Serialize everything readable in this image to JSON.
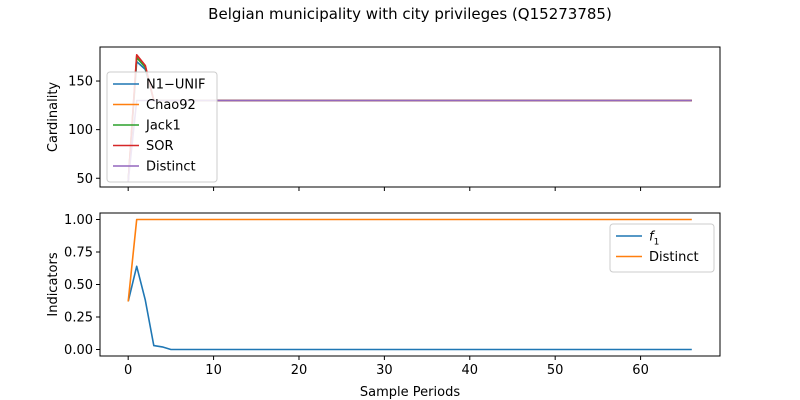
{
  "chart_data": {
    "type": "line",
    "suptitle": "Belgian municipality with city privileges (Q15273785)",
    "xlabel": "Sample Periods",
    "xlim": [
      -3.3,
      69.3
    ],
    "xticks": [
      0,
      10,
      20,
      30,
      40,
      50,
      60
    ],
    "xtick_labels": [
      "0",
      "10",
      "20",
      "30",
      "40",
      "50",
      "60"
    ],
    "panels": [
      {
        "ylabel": "Cardinality",
        "ylim": [
          41,
          185
        ],
        "yticks": [
          50,
          100,
          150
        ],
        "ytick_labels": [
          "50",
          "100",
          "150"
        ],
        "legend_loc": "upper-left",
        "series": [
          {
            "name": "N1−UNIF",
            "color": "#1f77b4",
            "x": [
              0,
              1,
              2,
              3,
              66
            ],
            "y": [
              47,
              170,
              162,
              130,
              130
            ]
          },
          {
            "name": "Chao92",
            "color": "#ff7f0e",
            "x": [
              0,
              1,
              2,
              3,
              66
            ],
            "y": [
              47,
              176,
              165,
              130,
              130
            ]
          },
          {
            "name": "Jack1",
            "color": "#2ca02c",
            "x": [
              0,
              1,
              2,
              3,
              66
            ],
            "y": [
              47,
              174,
              164,
              130,
              130
            ]
          },
          {
            "name": "SOR",
            "color": "#d62728",
            "x": [
              0,
              1,
              2,
              3,
              66
            ],
            "y": [
              47,
              177,
              166,
              130,
              130
            ]
          },
          {
            "name": "Distinct",
            "color": "#9467bd",
            "x": [
              0,
              1,
              2,
              3,
              66
            ],
            "y": [
              47,
              130,
              130,
              130,
              130
            ]
          }
        ]
      },
      {
        "ylabel": "Indicators",
        "ylim": [
          -0.05,
          1.05
        ],
        "yticks": [
          0,
          0.25,
          0.5,
          0.75,
          1.0
        ],
        "ytick_labels": [
          "0.00",
          "0.25",
          "0.50",
          "0.75",
          "1.00"
        ],
        "legend_loc": "upper-right",
        "series": [
          {
            "name": "f1",
            "color": "#1f77b4",
            "x": [
              0,
              1,
              2,
              3,
              4,
              5,
              66
            ],
            "y": [
              0.37,
              0.64,
              0.38,
              0.03,
              0.02,
              0.0,
              0.0
            ]
          },
          {
            "name": "Distinct",
            "color": "#ff7f0e",
            "x": [
              0,
              1,
              2,
              66
            ],
            "y": [
              0.37,
              1.0,
              1.0,
              1.0
            ]
          }
        ]
      }
    ]
  }
}
